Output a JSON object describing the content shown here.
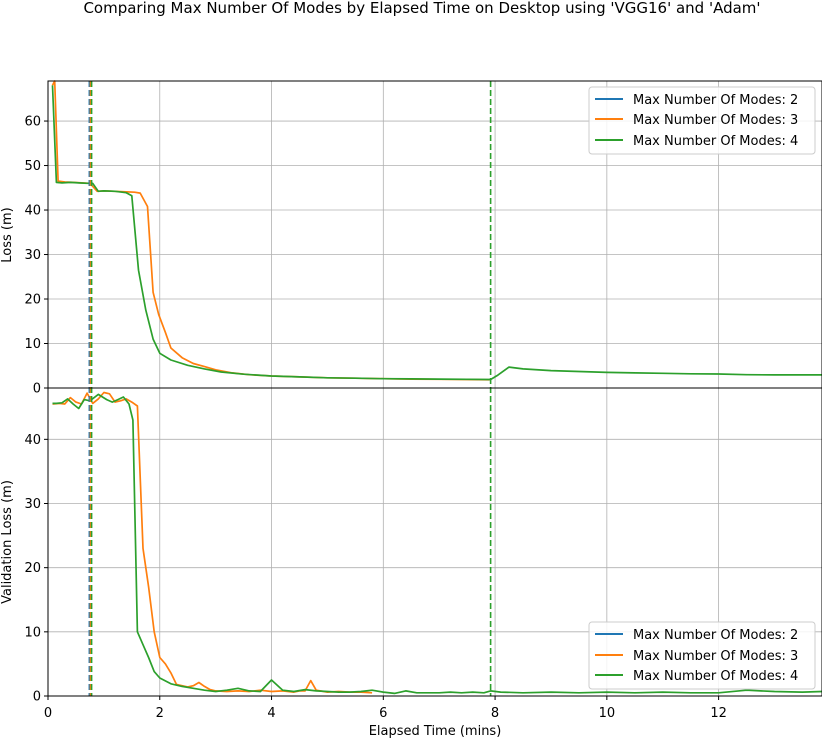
{
  "chart_data": {
    "type": "line",
    "title": "Comparing Max Number Of Modes by Elapsed Time on Desktop using 'VGG16' and 'Adam'",
    "xlabel": "Elapsed Time (mins)",
    "xlim": [
      0,
      13.85
    ],
    "x_ticks": [
      0,
      2,
      4,
      6,
      8,
      10,
      12
    ],
    "grid": true,
    "colors": {
      "Max Number Of Modes: 2": "#1f77b4",
      "Max Number Of Modes: 3": "#ff7f0e",
      "Max Number Of Modes: 4": "#2ca02c"
    },
    "vlines": [
      {
        "x": 0.74,
        "color": "#1f77b4"
      },
      {
        "x": 0.76,
        "color": "#ff7f0e"
      },
      {
        "x": 0.78,
        "color": "#2ca02c"
      },
      {
        "x": 7.92,
        "color": "#2ca02c"
      }
    ],
    "panels": [
      {
        "id": "top",
        "ylabel": "Loss (m)",
        "ylim": [
          0,
          69
        ],
        "y_ticks": [
          0,
          10,
          20,
          30,
          40,
          50,
          60
        ],
        "legend_position": "top-right",
        "legend": [
          "Max Number Of Modes: 2",
          "Max Number Of Modes: 3",
          "Max Number Of Modes: 4"
        ],
        "series": [
          {
            "name": "Max Number Of Modes: 3",
            "x": [
              0.08,
              0.12,
              0.18,
              0.3,
              0.45,
              0.6,
              0.75,
              0.88,
              1.0,
              1.2,
              1.4,
              1.55,
              1.65,
              1.78,
              1.88,
              1.98,
              2.1,
              2.2,
              2.4,
              2.6,
              2.8,
              3.0,
              3.3,
              3.6,
              4.0,
              4.5,
              5.0,
              5.5,
              6.0,
              6.5,
              7.0,
              7.5,
              7.9
            ],
            "values": [
              68,
              69,
              46.5,
              46.3,
              46.2,
              46.1,
              46.0,
              44.2,
              44.3,
              44.2,
              44.1,
              44.0,
              43.8,
              40.8,
              21.5,
              16.5,
              12.5,
              9.0,
              6.8,
              5.5,
              4.8,
              4.1,
              3.4,
              3.0,
              2.7,
              2.5,
              2.3,
              2.2,
              2.1,
              2.0,
              1.95,
              1.9,
              1.85
            ]
          },
          {
            "name": "Max Number Of Modes: 4",
            "x": [
              0.08,
              0.15,
              0.25,
              0.4,
              0.55,
              0.7,
              0.8,
              0.9,
              1.0,
              1.2,
              1.4,
              1.5,
              1.62,
              1.75,
              1.88,
              2.0,
              2.2,
              2.5,
              2.8,
              3.1,
              3.5,
              4.0,
              4.5,
              5.0,
              5.5,
              6.0,
              6.5,
              7.0,
              7.5,
              7.92,
              8.05,
              8.25,
              8.5,
              9.0,
              9.5,
              10.0,
              10.5,
              11.0,
              11.5,
              12.0,
              12.5,
              13.0,
              13.5,
              13.85
            ],
            "values": [
              68,
              46.2,
              46.1,
              46.2,
              46.1,
              46.0,
              46.0,
              44.2,
              44.3,
              44.2,
              43.9,
              43.2,
              26.5,
              17.5,
              11.0,
              7.8,
              6.3,
              5.1,
              4.3,
              3.6,
              3.1,
              2.7,
              2.5,
              2.3,
              2.2,
              2.1,
              2.05,
              2.0,
              1.95,
              1.9,
              2.9,
              4.7,
              4.3,
              3.9,
              3.7,
              3.5,
              3.4,
              3.3,
              3.2,
              3.15,
              3.0,
              2.95,
              2.95,
              2.95
            ]
          }
        ]
      },
      {
        "id": "bottom",
        "ylabel": "Validation Loss (m)",
        "ylim": [
          0,
          48
        ],
        "y_ticks": [
          0,
          10,
          20,
          30,
          40
        ],
        "legend_position": "bottom-right",
        "legend": [
          "Max Number Of Modes: 2",
          "Max Number Of Modes: 3",
          "Max Number Of Modes: 4"
        ],
        "series": [
          {
            "name": "Max Number Of Modes: 3",
            "x": [
              0.08,
              0.2,
              0.3,
              0.4,
              0.5,
              0.6,
              0.7,
              0.8,
              0.9,
              1.0,
              1.1,
              1.2,
              1.3,
              1.4,
              1.5,
              1.6,
              1.7,
              1.8,
              1.9,
              2.0,
              2.1,
              2.2,
              2.3,
              2.4,
              2.5,
              2.6,
              2.7,
              2.8,
              2.9,
              3.0,
              3.2,
              3.4,
              3.6,
              3.8,
              4.0,
              4.2,
              4.4,
              4.5,
              4.6,
              4.7,
              4.8,
              5.0,
              5.2,
              5.4,
              5.6,
              5.8
            ],
            "values": [
              45.5,
              45.6,
              45.5,
              46.5,
              45.8,
              45.5,
              47.2,
              45.6,
              46.3,
              47.3,
              47.1,
              45.8,
              46.0,
              46.3,
              45.8,
              45.2,
              23.0,
              17.0,
              10.0,
              6.0,
              5.0,
              3.6,
              1.8,
              1.6,
              1.4,
              1.6,
              2.1,
              1.5,
              1.0,
              0.8,
              0.7,
              0.8,
              0.7,
              0.9,
              0.7,
              0.8,
              0.6,
              0.8,
              0.8,
              2.4,
              0.9,
              0.6,
              0.7,
              0.6,
              0.6,
              0.5
            ]
          },
          {
            "name": "Max Number Of Modes: 4",
            "x": [
              0.08,
              0.15,
              0.25,
              0.35,
              0.45,
              0.55,
              0.65,
              0.75,
              0.9,
              1.05,
              1.15,
              1.25,
              1.35,
              1.45,
              1.52,
              1.6,
              1.7,
              1.8,
              1.9,
              2.0,
              2.2,
              2.4,
              2.6,
              2.8,
              3.0,
              3.2,
              3.4,
              3.6,
              3.8,
              4.0,
              4.2,
              4.4,
              4.6,
              4.8,
              5.0,
              5.2,
              5.4,
              5.6,
              5.8,
              6.0,
              6.2,
              6.4,
              6.6,
              6.8,
              7.0,
              7.2,
              7.4,
              7.6,
              7.8,
              7.92,
              8.1,
              8.5,
              9.0,
              9.5,
              10.0,
              10.5,
              11.0,
              11.5,
              12.0,
              12.5,
              13.0,
              13.5,
              13.85
            ],
            "values": [
              45.6,
              45.6,
              45.7,
              46.3,
              45.5,
              44.8,
              46.2,
              46.0,
              47.0,
              46.2,
              45.8,
              46.2,
              46.6,
              45.5,
              43.0,
              10.0,
              8.0,
              6.0,
              3.8,
              2.8,
              1.9,
              1.5,
              1.2,
              0.9,
              0.7,
              0.9,
              1.2,
              0.8,
              0.7,
              2.5,
              0.9,
              0.7,
              1.0,
              0.8,
              0.7,
              0.6,
              0.6,
              0.7,
              0.9,
              0.6,
              0.4,
              0.8,
              0.5,
              0.5,
              0.5,
              0.6,
              0.5,
              0.6,
              0.5,
              0.8,
              0.6,
              0.5,
              0.6,
              0.5,
              0.6,
              0.5,
              0.6,
              0.5,
              0.5,
              0.9,
              0.7,
              0.6,
              0.7
            ]
          }
        ]
      }
    ]
  }
}
